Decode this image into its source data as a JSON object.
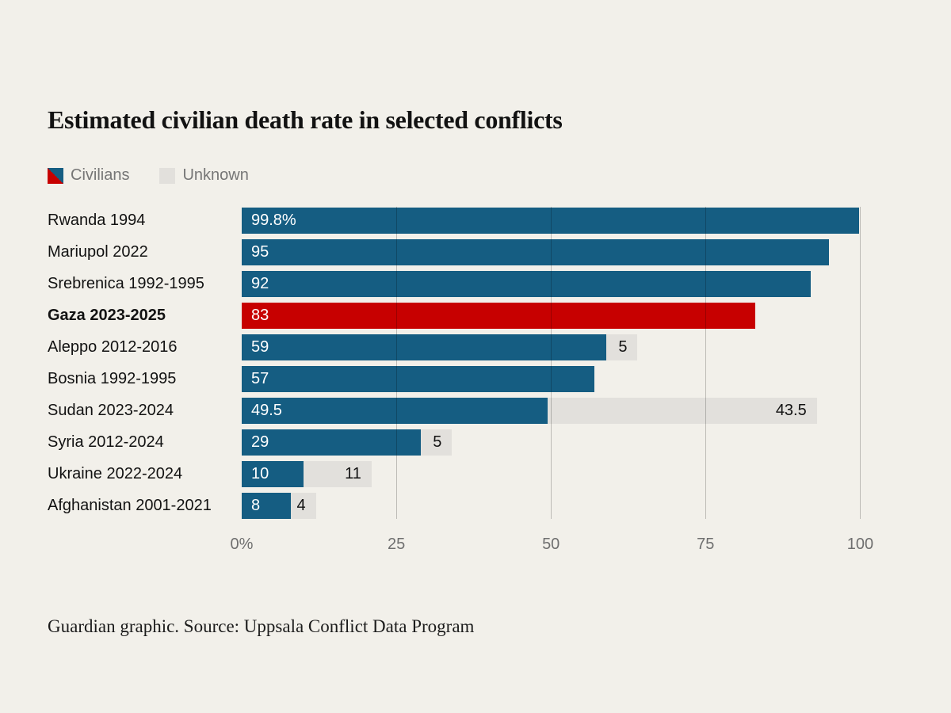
{
  "page": {
    "title": "Estimated civilian death rate in selected conflicts",
    "footer": "Guardian graphic. Source: Uppsala Conflict Data Program",
    "background": "#f2f0ea"
  },
  "colors": {
    "civilians_blue": "#155d82",
    "highlight_red": "#c70000",
    "unknown_gray": "#e2e0dc"
  },
  "legend": {
    "civilians_label": "Civilians",
    "unknown_label": "Unknown"
  },
  "chart_data": {
    "type": "bar",
    "orientation": "horizontal",
    "title": "Estimated civilian death rate in selected conflicts",
    "xlabel": "",
    "ylabel": "",
    "xlim": [
      0,
      102
    ],
    "grid": true,
    "legend_position": "top",
    "series_names": [
      "Civilians",
      "Unknown"
    ],
    "x_ticks": [
      {
        "label": "0%",
        "value": 0
      },
      {
        "label": "25",
        "value": 25
      },
      {
        "label": "50",
        "value": 50
      },
      {
        "label": "75",
        "value": 75
      },
      {
        "label": "100",
        "value": 100
      }
    ],
    "gridline_values": [
      25,
      50,
      75,
      100
    ],
    "rows": [
      {
        "label": "Rwanda 1994",
        "civilians": 99.8,
        "civilians_label": "99.8%",
        "unknown": 0,
        "unknown_label": "",
        "highlight": false
      },
      {
        "label": "Mariupol 2022",
        "civilians": 95,
        "civilians_label": "95",
        "unknown": 0,
        "unknown_label": "",
        "highlight": false
      },
      {
        "label": "Srebrenica 1992-1995",
        "civilians": 92,
        "civilians_label": "92",
        "unknown": 0,
        "unknown_label": "",
        "highlight": false
      },
      {
        "label": "Gaza 2023-2025",
        "civilians": 83,
        "civilians_label": "83",
        "unknown": 0,
        "unknown_label": "",
        "highlight": true
      },
      {
        "label": "Aleppo 2012-2016",
        "civilians": 59,
        "civilians_label": "59",
        "unknown": 5,
        "unknown_label": "5",
        "highlight": false
      },
      {
        "label": "Bosnia 1992-1995",
        "civilians": 57,
        "civilians_label": "57",
        "unknown": 0,
        "unknown_label": "",
        "highlight": false
      },
      {
        "label": "Sudan 2023-2024",
        "civilians": 49.5,
        "civilians_label": "49.5",
        "unknown": 43.5,
        "unknown_label": "43.5",
        "highlight": false
      },
      {
        "label": "Syria 2012-2024",
        "civilians": 29,
        "civilians_label": "29",
        "unknown": 5,
        "unknown_label": "5",
        "highlight": false
      },
      {
        "label": "Ukraine 2022-2024",
        "civilians": 10,
        "civilians_label": "10",
        "unknown": 11,
        "unknown_label": "11",
        "highlight": false
      },
      {
        "label": "Afghanistan 2001-2021",
        "civilians": 8,
        "civilians_label": "8",
        "unknown": 4,
        "unknown_label": "4",
        "highlight": false
      }
    ]
  }
}
